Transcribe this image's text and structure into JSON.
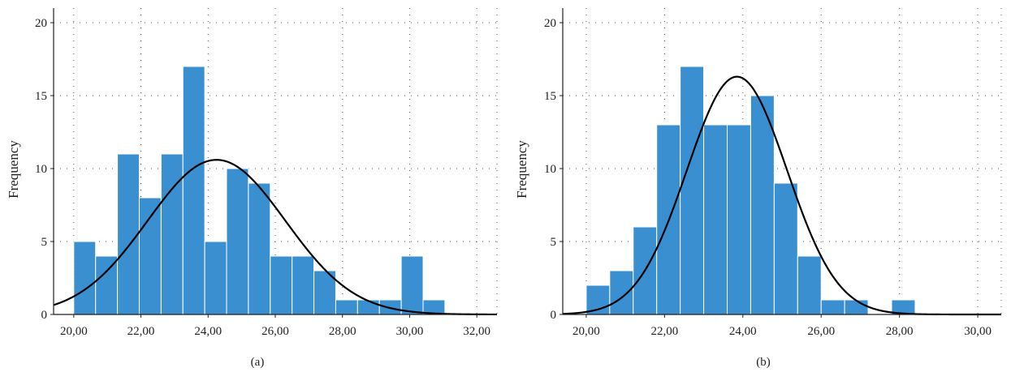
{
  "chart_data": [
    {
      "type": "bar",
      "panel_label": "(a)",
      "ylabel": "Frequency",
      "xlabel": "",
      "xlim": [
        19.4,
        32.6
      ],
      "ylim": [
        0,
        21
      ],
      "x_ticks": [
        20,
        22,
        24,
        26,
        28,
        30,
        32
      ],
      "x_tick_labels": [
        "20,00",
        "22,00",
        "24,00",
        "26,00",
        "28,00",
        "30,00",
        "32,00"
      ],
      "y_ticks": [
        0,
        5,
        10,
        15,
        20
      ],
      "y_tick_labels": [
        "0",
        "5",
        "10",
        "15",
        "20"
      ],
      "grid": true,
      "bar_color": "#3a8fd1",
      "curve_color": "#000000",
      "bins": [
        {
          "start": 20.0,
          "end": 20.65,
          "count": 5
        },
        {
          "start": 20.65,
          "end": 21.3,
          "count": 4
        },
        {
          "start": 21.3,
          "end": 21.95,
          "count": 11
        },
        {
          "start": 21.95,
          "end": 22.6,
          "count": 8
        },
        {
          "start": 22.6,
          "end": 23.25,
          "count": 11
        },
        {
          "start": 23.25,
          "end": 23.9,
          "count": 17
        },
        {
          "start": 23.9,
          "end": 24.55,
          "count": 5
        },
        {
          "start": 24.55,
          "end": 25.2,
          "count": 10
        },
        {
          "start": 25.2,
          "end": 25.85,
          "count": 9
        },
        {
          "start": 25.85,
          "end": 26.5,
          "count": 4
        },
        {
          "start": 26.5,
          "end": 27.15,
          "count": 4
        },
        {
          "start": 27.15,
          "end": 27.8,
          "count": 3
        },
        {
          "start": 27.8,
          "end": 28.45,
          "count": 1
        },
        {
          "start": 28.45,
          "end": 29.1,
          "count": 1
        },
        {
          "start": 29.1,
          "end": 29.75,
          "count": 1
        },
        {
          "start": 29.75,
          "end": 30.4,
          "count": 4
        },
        {
          "start": 30.4,
          "end": 31.05,
          "count": 1
        }
      ],
      "normal_curve": {
        "mean": 24.25,
        "sd": 2.05,
        "peak": 10.6
      }
    },
    {
      "type": "bar",
      "panel_label": "(b)",
      "ylabel": "Frequency",
      "xlabel": "",
      "xlim": [
        19.4,
        30.6
      ],
      "ylim": [
        0,
        21
      ],
      "x_ticks": [
        20,
        22,
        24,
        26,
        28,
        30
      ],
      "x_tick_labels": [
        "20,00",
        "22,00",
        "24,00",
        "26,00",
        "28,00",
        "30,00"
      ],
      "y_ticks": [
        0,
        5,
        10,
        15,
        20
      ],
      "y_tick_labels": [
        "0",
        "5",
        "10",
        "15",
        "20"
      ],
      "grid": true,
      "bar_color": "#3a8fd1",
      "curve_color": "#000000",
      "bins": [
        {
          "start": 20.0,
          "end": 20.6,
          "count": 2
        },
        {
          "start": 20.6,
          "end": 21.2,
          "count": 3
        },
        {
          "start": 21.2,
          "end": 21.8,
          "count": 6
        },
        {
          "start": 21.8,
          "end": 22.4,
          "count": 13
        },
        {
          "start": 22.4,
          "end": 23.0,
          "count": 17
        },
        {
          "start": 23.0,
          "end": 23.6,
          "count": 13
        },
        {
          "start": 23.6,
          "end": 24.2,
          "count": 13
        },
        {
          "start": 24.2,
          "end": 24.8,
          "count": 15
        },
        {
          "start": 24.8,
          "end": 25.4,
          "count": 9
        },
        {
          "start": 25.4,
          "end": 26.0,
          "count": 4
        },
        {
          "start": 26.0,
          "end": 26.6,
          "count": 1
        },
        {
          "start": 26.6,
          "end": 27.2,
          "count": 1
        },
        {
          "start": 27.2,
          "end": 27.8,
          "count": 0
        },
        {
          "start": 27.8,
          "end": 28.4,
          "count": 1
        }
      ],
      "normal_curve": {
        "mean": 23.85,
        "sd": 1.28,
        "peak": 16.3
      }
    }
  ]
}
